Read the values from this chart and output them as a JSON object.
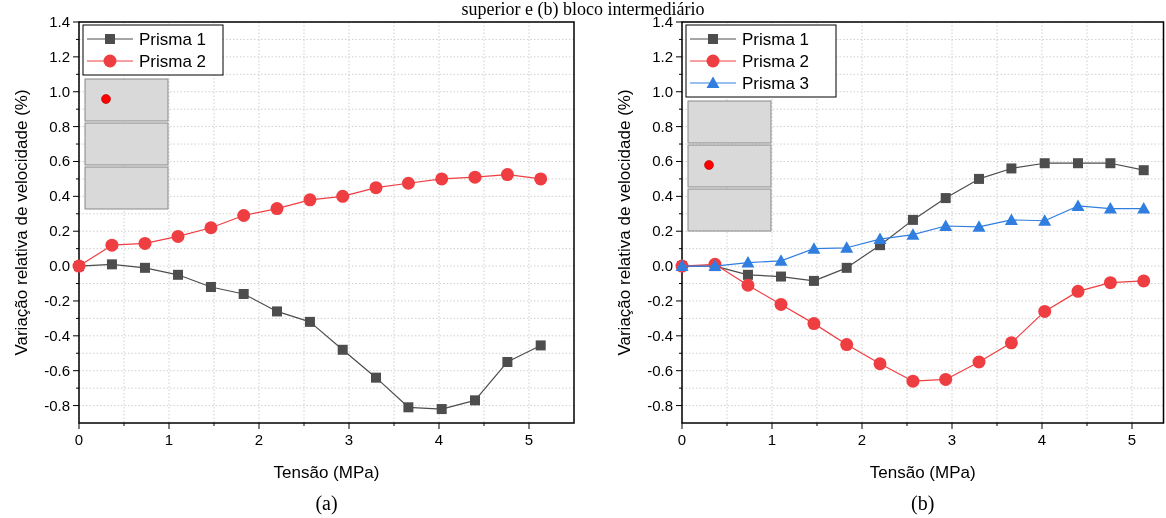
{
  "chart_data": [
    {
      "type": "line",
      "xlabel": "Tensão (MPa)",
      "ylabel": "Variação relativa de velocidade (%)",
      "annotations": [
        "superior e (b) bloco intermediário",
        "(a)"
      ],
      "x": [
        0,
        0.366,
        0.733,
        1.1,
        1.466,
        1.83,
        2.2,
        2.566,
        2.93,
        3.3,
        3.66,
        4.03,
        4.4,
        4.76,
        5.13
      ],
      "series": [
        {
          "name": "Prisma 1",
          "color": "#4d4d4d",
          "marker": "square",
          "values": [
            0,
            0.01,
            -0.01,
            -0.05,
            -0.12,
            -0.16,
            -0.26,
            -0.32,
            -0.48,
            -0.64,
            -0.81,
            -0.82,
            -0.77,
            -0.55,
            -0.455
          ]
        },
        {
          "name": "Prisma 2",
          "color": "#ef3e42",
          "marker": "circle",
          "values": [
            0,
            0.12,
            0.13,
            0.17,
            0.22,
            0.29,
            0.33,
            0.38,
            0.4,
            0.45,
            0.475,
            0.5,
            0.51,
            0.525,
            0.5
          ]
        }
      ],
      "xlim": [
        0,
        5.5
      ],
      "ylim": [
        -0.9,
        1.4
      ],
      "xticks": [
        0,
        {
          "value": 0.5,
          "label": null
        },
        1,
        {
          "value": 1.5,
          "label": null
        },
        2,
        {
          "value": 2.5,
          "label": null
        },
        3,
        {
          "value": 3.5,
          "label": null
        },
        4,
        {
          "value": 4.5,
          "label": null
        },
        5
      ],
      "yticks": [
        -0.8,
        {
          "value": -0.7,
          "label": null
        },
        -0.6,
        {
          "value": -0.5,
          "label": null
        },
        -0.4,
        {
          "value": -0.3,
          "label": null
        },
        -0.2,
        {
          "value": -0.1,
          "label": null
        },
        {
          "value": 0,
          "label": "0.0"
        },
        {
          "value": 0.1,
          "label": null
        },
        0.2,
        {
          "value": 0.3,
          "label": null
        },
        0.4,
        {
          "value": 0.5,
          "label": null
        },
        0.6,
        {
          "value": 0.7,
          "label": null
        },
        0.8,
        {
          "value": 0.9,
          "label": null
        },
        {
          "value": 1.0,
          "label": "1.0"
        },
        {
          "value": 1.1,
          "label": null
        },
        1.2,
        {
          "value": 1.3,
          "label": null
        },
        1.4
      ],
      "grid": true,
      "legend": "top left",
      "line_style": "solid"
    },
    {
      "type": "line",
      "xlabel": "Tensão (MPa)",
      "ylabel": "Variação relativa de velocidade (%)",
      "annotations": [
        "(b)"
      ],
      "x": [
        0,
        0.366,
        0.733,
        1.1,
        1.466,
        1.83,
        2.2,
        2.566,
        2.93,
        3.3,
        3.66,
        4.03,
        4.4,
        4.76,
        5.13
      ],
      "series": [
        {
          "name": "Prisma 1",
          "color": "#4d4d4d",
          "marker": "square",
          "values": [
            0,
            0,
            -0.05,
            -0.06,
            -0.085,
            -0.01,
            0.12,
            0.265,
            0.39,
            0.5,
            0.56,
            0.59,
            0.59,
            0.59,
            0.55
          ]
        },
        {
          "name": "Prisma 2",
          "color": "#ef3e42",
          "marker": "circle",
          "values": [
            0,
            0.01,
            -0.11,
            -0.22,
            -0.33,
            -0.45,
            -0.56,
            -0.66,
            -0.65,
            -0.55,
            -0.44,
            -0.26,
            -0.145,
            -0.095,
            -0.085
          ]
        },
        {
          "name": "Prisma 3",
          "color": "#2f7ee0",
          "marker": "triangle",
          "values": [
            0,
            0,
            0.02,
            0.03,
            0.1,
            0.105,
            0.155,
            0.18,
            0.23,
            0.225,
            0.265,
            0.26,
            0.345,
            0.33,
            0.33
          ]
        }
      ],
      "xlim": [
        0,
        5.35
      ],
      "ylim": [
        -0.9,
        1.4
      ],
      "xticks": [
        0,
        {
          "value": 0.5,
          "label": null
        },
        1,
        {
          "value": 1.5,
          "label": null
        },
        2,
        {
          "value": 2.5,
          "label": null
        },
        3,
        {
          "value": 3.5,
          "label": null
        },
        4,
        {
          "value": 4.5,
          "label": null
        },
        5
      ],
      "yticks": [
        -0.8,
        {
          "value": -0.7,
          "label": null
        },
        -0.6,
        {
          "value": -0.5,
          "label": null
        },
        -0.4,
        {
          "value": -0.3,
          "label": null
        },
        -0.2,
        {
          "value": -0.1,
          "label": null
        },
        {
          "value": 0,
          "label": "0.0"
        },
        {
          "value": 0.1,
          "label": null
        },
        0.2,
        {
          "value": 0.3,
          "label": null
        },
        0.4,
        {
          "value": 0.5,
          "label": null
        },
        0.6,
        {
          "value": 0.7,
          "label": null
        },
        0.8,
        {
          "value": 0.9,
          "label": null
        },
        {
          "value": 1.0,
          "label": "1.0"
        },
        {
          "value": 1.1,
          "label": null
        },
        1.2,
        {
          "value": 1.3,
          "label": null
        },
        1.4
      ],
      "grid": true,
      "legend": "top left",
      "line_style": "solid"
    }
  ]
}
